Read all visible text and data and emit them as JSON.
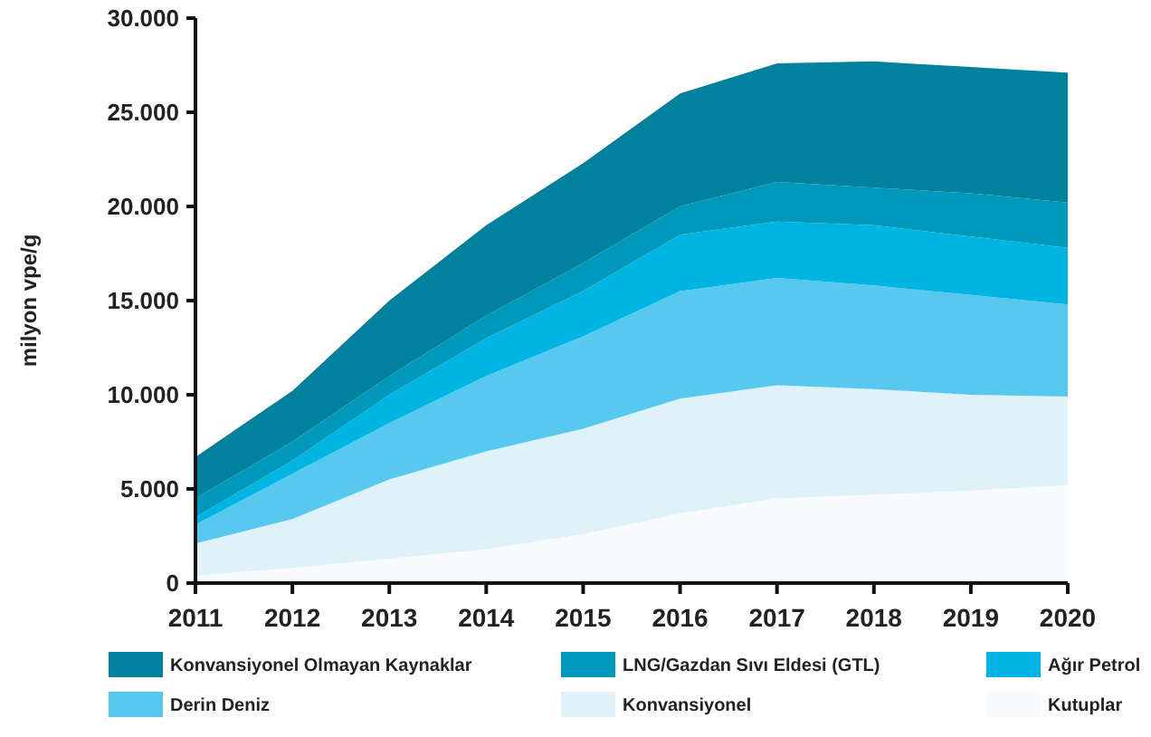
{
  "chart_data": {
    "type": "area",
    "stacked": true,
    "ylabel": "milyon vpe/g",
    "x": [
      2011,
      2012,
      2013,
      2014,
      2015,
      2016,
      2017,
      2018,
      2019,
      2020
    ],
    "xlim": [
      2011,
      2020
    ],
    "xticks": [
      2011,
      2012,
      2013,
      2014,
      2015,
      2016,
      2017,
      2018,
      2019,
      2020
    ],
    "ylim": [
      0,
      30000
    ],
    "yticks": [
      {
        "value": 0,
        "label": "0"
      },
      {
        "value": 5000,
        "label": "5.000"
      },
      {
        "value": 10000,
        "label": "10.000"
      },
      {
        "value": 15000,
        "label": "15.000"
      },
      {
        "value": 20000,
        "label": "20.000"
      },
      {
        "value": 25000,
        "label": "25.000"
      },
      {
        "value": 30000,
        "label": "30.000"
      }
    ],
    "grid": false,
    "legend": "bottom",
    "series": [
      {
        "name": "Kutuplar",
        "color": "#f7fbfd",
        "values": [
          400,
          800,
          1300,
          1800,
          2600,
          3700,
          4500,
          4700,
          4900,
          5200
        ]
      },
      {
        "name": "Konvansiyonel",
        "color": "#dff1f9",
        "values": [
          1700,
          2600,
          4200,
          5200,
          5600,
          6100,
          6000,
          5600,
          5100,
          4700
        ]
      },
      {
        "name": "Derin Deniz",
        "color": "#57c8ee",
        "values": [
          1000,
          2400,
          3000,
          4000,
          4900,
          5700,
          5700,
          5500,
          5300,
          4900
        ]
      },
      {
        "name": "Ağır Petrol",
        "color": "#00b5e2",
        "values": [
          400,
          700,
          1500,
          2000,
          2400,
          3000,
          3000,
          3200,
          3100,
          3000
        ]
      },
      {
        "name": "LNG/Gazdan Sıvı Eldesi (GTL)",
        "color": "#0099bb",
        "values": [
          1000,
          1000,
          1000,
          1200,
          1500,
          1500,
          2100,
          2000,
          2300,
          2400
        ]
      },
      {
        "name": "Konvansiyonel Olmayan Kaynaklar",
        "color": "#00829e",
        "values": [
          2200,
          2700,
          4000,
          4800,
          5300,
          6000,
          6300,
          6700,
          6700,
          6900
        ]
      }
    ]
  }
}
